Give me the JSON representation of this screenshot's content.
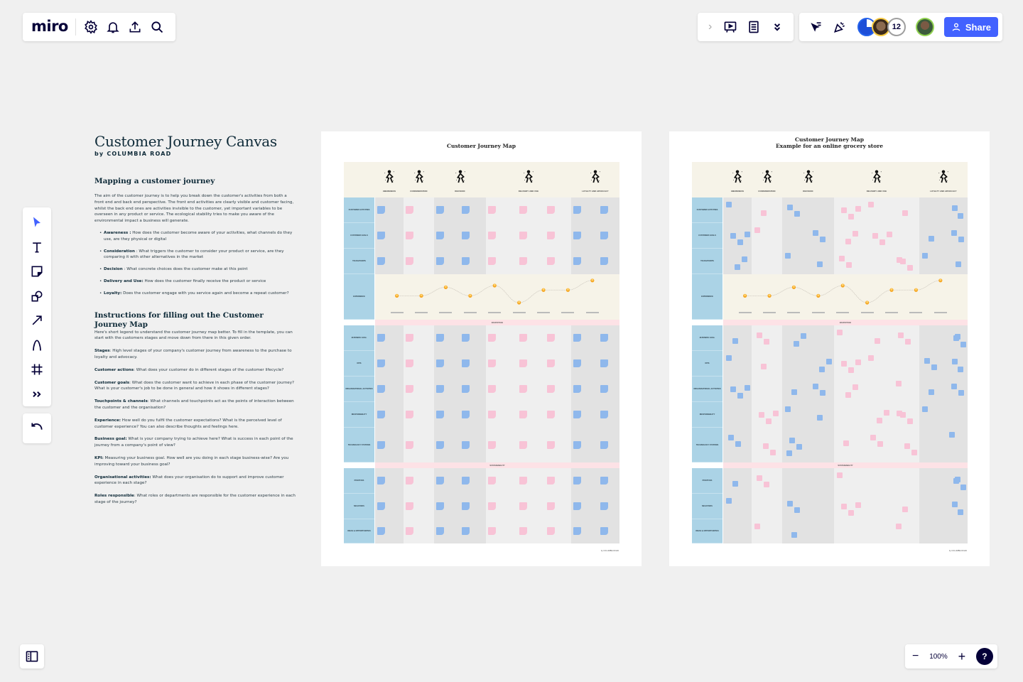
{
  "app": {
    "logo": "miro",
    "toolbar_left": [
      {
        "name": "settings-icon"
      },
      {
        "name": "notifications-icon"
      },
      {
        "name": "upload-icon"
      },
      {
        "name": "search-icon"
      }
    ],
    "toolbar_right": {
      "expand_arrow": "›",
      "presentation": "presentation-icon",
      "notes": "notes-icon",
      "more": "chevrons-down-icon",
      "reactions": "reactions-icon",
      "celebrate": "confetti-icon",
      "collaborator_count": "12",
      "share_label": "Share"
    },
    "tools": [
      {
        "name": "select-tool"
      },
      {
        "name": "text-tool"
      },
      {
        "name": "sticky-note-tool"
      },
      {
        "name": "shapes-tool"
      },
      {
        "name": "connection-line-tool"
      },
      {
        "name": "pen-tool"
      },
      {
        "name": "frame-tool"
      },
      {
        "name": "more-tools"
      }
    ],
    "zoom": {
      "minus": "−",
      "value": "100%",
      "plus": "+",
      "help": "?"
    },
    "colors": {
      "accent": "#4262ff",
      "ink": "#050038",
      "canvas": "#f0f0f0"
    }
  },
  "intro": {
    "title": "Customer Journey Canvas",
    "byline": "by COLUMBIA ROAD",
    "mapping_heading": "Mapping a customer journey",
    "mapping_text": "The aim of the customer journey is to help you break down the customer's activities from both a front end and back end perspective. The front end activities are clearly visible and customer facing, whilst the back end ones are activities invisible to the customer, yet important variables to be overseen in any product or service. The ecological stability tries to make you aware of the environmental impact a business will generate.",
    "stages": [
      {
        "term": "Awareness :",
        "desc": " How does the customer become aware of your activities, what channels do they use, are they physical or digital"
      },
      {
        "term": "Consideration",
        "desc": " : What triggers the customer to consider your product or service, are they comparing it with other alternatives in the market"
      },
      {
        "term": "Decision",
        "desc": " :  What concrete choices does the customer make at this point"
      },
      {
        "term": "Delivery and Use:",
        "desc": " How does the customer finally receive the product or service"
      },
      {
        "term": "Loyalty:",
        "desc": " Does the customer engage with you service again and become a repeat customer?"
      }
    ],
    "instructions_heading": "Instructions for filling out the Customer Journey Map",
    "instructions_lead": "Here's short legend to understand the customer journey map better. To fill in the template, you can start with the customers stages and move down from there in this given order.",
    "definitions": [
      {
        "term": "Stages",
        "desc": ": High level stages of your company's customer journey from awareness to the purchase to loyalty and advocacy."
      },
      {
        "term": "Customer actions",
        "desc": ": What does your customer do in different stages of the customer lifecycle?"
      },
      {
        "term": "Customer goals",
        "desc": ": What does the customer want to achieve in each phase of the customer journey? What is your customer's job to be done in general and how it shows in different stages?"
      },
      {
        "term": "Touchpoints & channels",
        "desc": ": What channels and touchpoints act as the points of interaction between the customer and the organisation?"
      },
      {
        "term": "Experience:",
        "desc": " How well do you fulfil the customer expectations? What is the perceived level of customer experience? You can also describe thoughts and feelings here."
      },
      {
        "term": "Business goal:",
        "desc": " What is your company trying to achieve here? What is success in each point of the journey from a company's point of view?"
      },
      {
        "term": "KPI:",
        "desc": " Measuring your business goal. How well are you doing in each stage business-wise? Are you improving toward your business goal?"
      },
      {
        "term": "Organisational activities:",
        "desc": " What does your organisation do to support and improve customer experience in each stage?"
      },
      {
        "term": "Roles responsible",
        "desc": ": What roles or departments are responsible for the customer experience in each stage of the journey?"
      }
    ]
  },
  "maps": [
    {
      "title_line1": "Customer Journey Map",
      "title_line2": "",
      "stages": [
        "AWARENESS",
        "CONSIDERATION",
        "DECISION",
        "DELIVERY AND USE",
        "LOYALTY AND ADVOCACY"
      ],
      "rows": [
        "CUSTOMER ACTIVITIES",
        "CUSTOMER GOALS",
        "TOUCHPOINTS",
        "EXPERIENCE",
        "BUSINESS GOAL",
        "KPIS",
        "ORGANISATIONAL ACTIVITIES",
        "RESPONSIBILITY",
        "TECHNOLOGY SYSTEMS",
        "POSITIVES",
        "NEGATIVES",
        "IDEAS & OPPORTUNITIES"
      ],
      "backstage_label": "BACKSTAGE",
      "sustainability_label": "SUSTAINABILITY",
      "footnote": "by COLUMBIA ROAD"
    },
    {
      "title_line1": "Customer Journey Map",
      "title_line2": "Example for an online grocery store",
      "stages": [
        "AWARENESS",
        "CONSIDERATION",
        "DECISION",
        "DELIVERY AND USE",
        "LOYALTY AND ADVOCACY"
      ],
      "rows": [
        "CUSTOMER ACTIVITIES",
        "CUSTOMER GOALS",
        "TOUCHPOINTS",
        "EXPERIENCE",
        "BUSINESS GOAL",
        "KPIS",
        "ORGANISATIONAL ACTIVITIES",
        "RESPONSIBILITY",
        "TECHNOLOGY SYSTEMS",
        "POSITIVES",
        "NEGATIVES",
        "IDEAS & OPPORTUNITIES"
      ],
      "backstage_label": "BACKSTAGE",
      "sustainability_label": "SUSTAINABILITY",
      "footnote": "by COLUMBIA ROAD"
    }
  ]
}
